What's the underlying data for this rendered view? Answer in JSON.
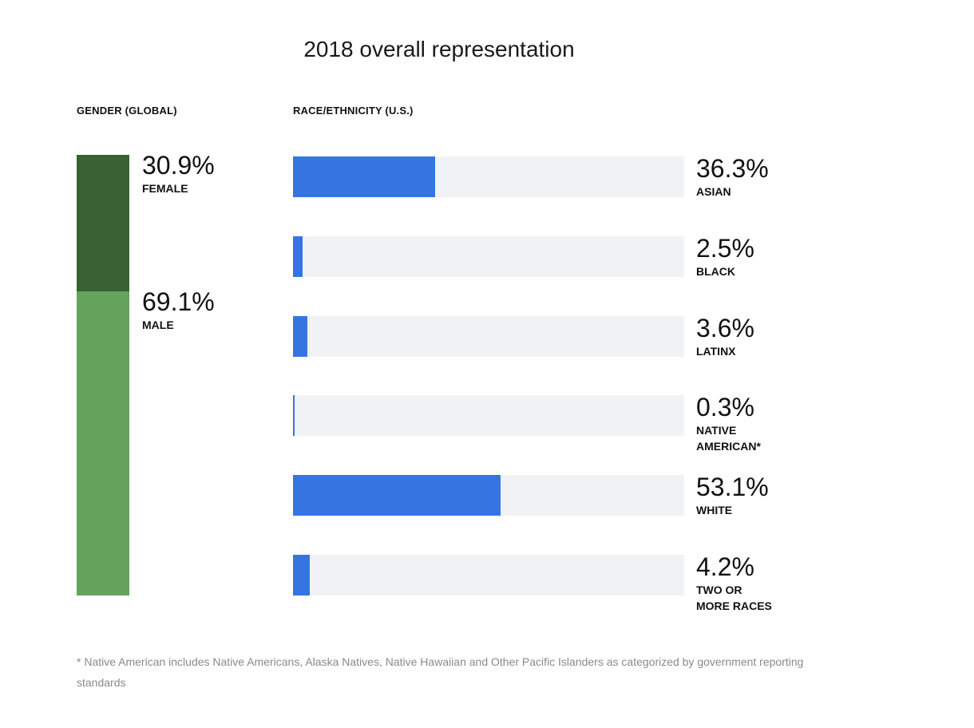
{
  "title": "2018 overall representation",
  "gender": {
    "section_label": "GENDER (GLOBAL)",
    "items": [
      {
        "pct_label": "30.9%",
        "label": "FEMALE",
        "value": 30.9,
        "color": "#386232"
      },
      {
        "pct_label": "69.1%",
        "label": "MALE",
        "value": 69.1,
        "color": "#63a35c"
      }
    ]
  },
  "race": {
    "section_label": "RACE/ETHNICITY  (U.S.)",
    "fill_color": "#3575e1",
    "track_color": "#f1f2f5",
    "items": [
      {
        "pct_label": "36.3%",
        "label": "ASIAN",
        "value": 36.3
      },
      {
        "pct_label": "2.5%",
        "label": "BLACK",
        "value": 2.5
      },
      {
        "pct_label": "3.6%",
        "label": "LATINX",
        "value": 3.6
      },
      {
        "pct_label": "0.3%",
        "label": "NATIVE\nAMERICAN*",
        "value": 0.3
      },
      {
        "pct_label": "53.1%",
        "label": "WHITE",
        "value": 53.1
      },
      {
        "pct_label": "4.2%",
        "label": "TWO OR\nMORE RACES",
        "value": 4.2
      }
    ]
  },
  "footnote": "* Native American includes Native Americans, Alaska Natives, Native Hawaiian and Other Pacific Islanders as categorized by government reporting standards",
  "chart_data": [
    {
      "type": "bar",
      "title": "",
      "categories": [
        "FEMALE",
        "MALE"
      ],
      "values": [
        30.9,
        69.1
      ],
      "xlabel": "GENDER (GLOBAL)",
      "ylabel": "",
      "ylim": [
        0,
        100
      ],
      "stacked": true,
      "grid": false
    },
    {
      "type": "bar",
      "title": "",
      "categories": [
        "ASIAN",
        "BLACK",
        "LATINX",
        "NATIVE AMERICAN*",
        "WHITE",
        "TWO OR MORE RACES"
      ],
      "values": [
        36.3,
        2.5,
        3.6,
        0.3,
        53.1,
        4.2
      ],
      "xlabel": "RACE/ETHNICITY  (U.S.)",
      "ylabel": "",
      "xlim": [
        0,
        100
      ],
      "orientation": "horizontal",
      "grid": false
    }
  ]
}
